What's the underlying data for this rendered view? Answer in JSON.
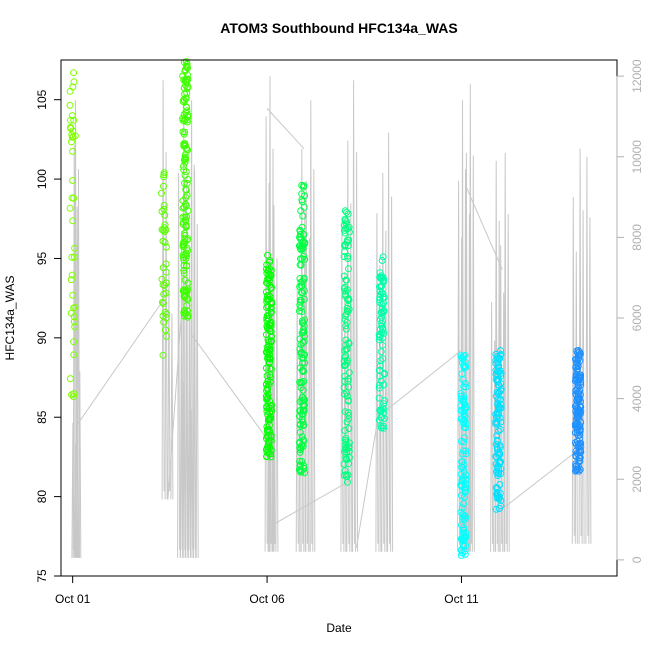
{
  "chart_data": {
    "type": "scatter",
    "title": "ATOM3 Southbound HFC134a_WAS",
    "xlabel": "Date",
    "ylabel": "HFC134a_WAS",
    "x_ticks": [
      {
        "label": "Oct 01",
        "day": 1
      },
      {
        "label": "Oct 06",
        "day": 6
      },
      {
        "label": "Oct 11",
        "day": 11
      }
    ],
    "x_range_days": [
      0.7,
      15.0
    ],
    "ylim": [
      75,
      107.5
    ],
    "y_ticks": [
      75,
      80,
      85,
      90,
      95,
      100,
      105
    ],
    "y2_ticks": [
      0,
      2000,
      4000,
      6000,
      8000,
      10000,
      12000
    ],
    "y2_range": [
      -400,
      12400
    ],
    "clusters": [
      {
        "day": 1.0,
        "min": 86.3,
        "max": 106.7,
        "n": 40,
        "color": "#7fff00"
      },
      {
        "day": 3.35,
        "min": 88.9,
        "max": 100.4,
        "n": 38,
        "color": "#5cff00"
      },
      {
        "day": 3.9,
        "min": 91.3,
        "max": 107.4,
        "n": 140,
        "color": "#3fff00"
      },
      {
        "day": 6.05,
        "min": 82.5,
        "max": 95.2,
        "n": 140,
        "color": "#00ff00"
      },
      {
        "day": 6.9,
        "min": 81.5,
        "max": 99.6,
        "n": 140,
        "color": "#00ff40"
      },
      {
        "day": 8.05,
        "min": 80.9,
        "max": 98.0,
        "n": 110,
        "color": "#00ff7f"
      },
      {
        "day": 8.95,
        "min": 84.3,
        "max": 95.1,
        "n": 80,
        "color": "#00ffaa"
      },
      {
        "day": 11.05,
        "min": 76.3,
        "max": 88.9,
        "n": 110,
        "color": "#00ffff"
      },
      {
        "day": 11.95,
        "min": 79.2,
        "max": 89.2,
        "n": 110,
        "color": "#00e0ff"
      },
      {
        "day": 14.0,
        "min": 81.6,
        "max": 89.2,
        "n": 140,
        "color": "#1e90ff"
      }
    ],
    "altitude_trace": {
      "color": "#c8c8c8",
      "description_unused": "",
      "segments": [
        {
          "t0": 0.98,
          "t1": 1.08,
          "floor": 50,
          "peaks": [
            3400,
            10300,
            11400,
            5500
          ]
        },
        {
          "t1": 3.3,
          "via": [
            [
              1.08,
              3300
            ],
            [
              3.3,
              6800
            ]
          ]
        },
        {
          "t0": 3.3,
          "t1": 3.45,
          "floor": 1500,
          "peaks": [
            11900,
            7200
          ]
        },
        {
          "t0": 3.7,
          "t1": 4.1,
          "floor": 50,
          "peaks": [
            9600,
            5200,
            11200,
            8700,
            4400,
            11400,
            9800
          ]
        },
        {
          "t0": 5.95,
          "t1": 6.15,
          "floor": 200,
          "peaks": [
            11000,
            12000,
            8800
          ]
        },
        {
          "t0": 6.75,
          "t1": 7.1,
          "floor": 200,
          "peaks": [
            6800,
            10200,
            9400,
            11400
          ]
        },
        {
          "t0": 7.9,
          "t1": 8.2,
          "floor": 200,
          "peaks": [
            8400,
            10400,
            11900
          ]
        },
        {
          "t0": 8.8,
          "t1": 9.1,
          "floor": 200,
          "peaks": [
            8600,
            9600,
            10600
          ]
        },
        {
          "t0": 10.9,
          "t1": 11.2,
          "floor": 200,
          "peaks": [
            9400,
            11400,
            10100,
            11800
          ]
        },
        {
          "t0": 11.75,
          "t1": 12.1,
          "floor": 200,
          "peaks": [
            6400,
            9900,
            7800,
            10100
          ]
        },
        {
          "t0": 13.85,
          "t1": 14.2,
          "floor": 400,
          "peaks": [
            9000,
            10200,
            10000
          ]
        }
      ],
      "connectors": [
        [
          [
            1.08,
            3300
          ],
          [
            3.3,
            6400
          ]
        ],
        [
          [
            3.45,
            1500
          ],
          [
            3.85,
            6800
          ]
        ],
        [
          [
            6.0,
            11200
          ],
          [
            6.95,
            10200
          ]
        ],
        [
          [
            6.2,
            900
          ],
          [
            8.2,
            2000
          ]
        ],
        [
          [
            8.3,
            300
          ],
          [
            8.9,
            3800
          ]
        ],
        [
          [
            9.05,
            3700
          ],
          [
            11.0,
            5200
          ]
        ],
        [
          [
            11.1,
            9300
          ],
          [
            12.05,
            7200
          ]
        ],
        [
          [
            12.1,
            1300
          ],
          [
            14.1,
            2800
          ]
        ],
        [
          [
            4.05,
            5600
          ],
          [
            6.0,
            3000
          ]
        ]
      ]
    }
  }
}
